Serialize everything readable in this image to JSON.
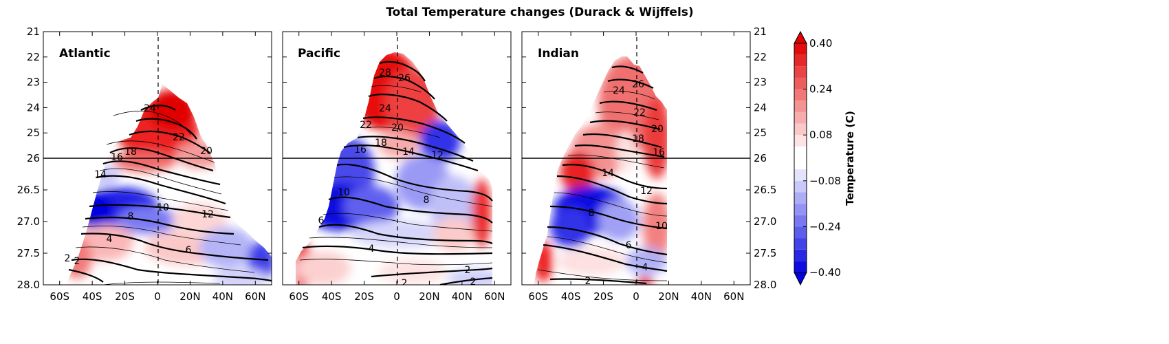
{
  "chart_data": {
    "type": "heatmap",
    "title": "Total Temperature changes (Durack & Wijffels)",
    "xlabel": "",
    "ylabel": "",
    "x_ticks": [
      "60S",
      "40S",
      "20S",
      "0",
      "20N",
      "40N",
      "60N"
    ],
    "x_values": [
      -60,
      -40,
      -20,
      0,
      20,
      40,
      60
    ],
    "xlim": [
      -70,
      70
    ],
    "y_ticks_upper": [
      "21",
      "22",
      "23",
      "24",
      "25",
      "26"
    ],
    "y_ticks_lower": [
      "26",
      "26.5",
      "27.0",
      "27.5",
      "28.0"
    ],
    "y_upper_range": [
      21,
      26
    ],
    "y_lower_range": [
      26,
      28
    ],
    "colorbar": {
      "label": "Temperature (C)",
      "ticks": [
        "0.40",
        "0.24",
        "0.08",
        "−0.08",
        "−0.24",
        "−0.40"
      ],
      "vmin": -0.4,
      "vmax": 0.4,
      "levels": [
        -0.4,
        -0.36,
        -0.32,
        -0.28,
        -0.24,
        -0.2,
        -0.16,
        -0.12,
        -0.08,
        -0.04,
        0.04,
        0.08,
        0.12,
        0.16,
        0.2,
        0.24,
        0.28,
        0.32,
        0.36,
        0.4
      ]
    },
    "panels": [
      {
        "name": "Atlantic",
        "contour_labels": [
          "24",
          "22",
          "20",
          "18",
          "16",
          "14",
          "12",
          "10",
          "8",
          "6",
          "4",
          "2",
          "2"
        ],
        "contour_label_values": [
          24,
          22,
          20,
          18,
          16,
          14,
          12,
          10,
          8,
          6,
          4,
          2,
          2
        ]
      },
      {
        "name": "Pacific",
        "contour_labels": [
          "28",
          "26",
          "24",
          "22",
          "20",
          "18",
          "16",
          "14",
          "12",
          "10",
          "8",
          "6",
          "4",
          "2",
          "2",
          "2"
        ],
        "contour_label_values": [
          28,
          26,
          24,
          22,
          20,
          18,
          16,
          14,
          12,
          10,
          8,
          6,
          4,
          2,
          2,
          2
        ]
      },
      {
        "name": "Indian",
        "contour_labels": [
          "26",
          "24",
          "22",
          "20",
          "18",
          "16",
          "14",
          "12",
          "10",
          "8",
          "6",
          "4",
          "2"
        ],
        "contour_label_values": [
          26,
          24,
          22,
          20,
          18,
          16,
          14,
          12,
          10,
          8,
          6,
          4,
          2
        ]
      }
    ]
  }
}
